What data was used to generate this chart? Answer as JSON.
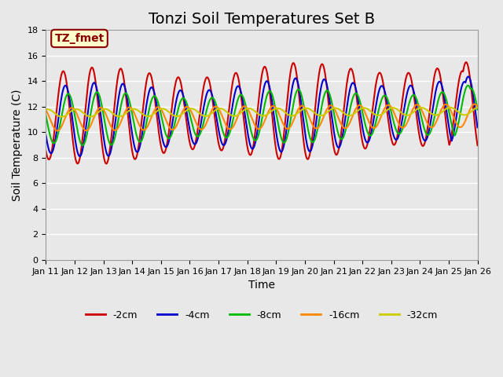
{
  "title": "Tonzi Soil Temperatures Set B",
  "xlabel": "Time",
  "ylabel": "Soil Temperature (C)",
  "ylim": [
    0,
    18
  ],
  "xlim": [
    0,
    15
  ],
  "yticks": [
    0,
    2,
    4,
    6,
    8,
    10,
    12,
    14,
    16,
    18
  ],
  "xtick_labels": [
    "Jan 11",
    "Jan 12",
    "Jan 13",
    "Jan 14",
    "Jan 15",
    "Jan 16",
    "Jan 17",
    "Jan 18",
    "Jan 19",
    "Jan 20",
    "Jan 21",
    "Jan 22",
    "Jan 23",
    "Jan 24",
    "Jan 25",
    "Jan 26"
  ],
  "annotation_text": "TZ_fmet",
  "annotation_color": "#8B0000",
  "annotation_bg": "#FFFFCC",
  "legend_colors": {
    "-2cm": "#CC0000",
    "-4cm": "#0000CC",
    "-8cm": "#00BB00",
    "-16cm": "#FF8800",
    "-32cm": "#CCCC00"
  },
  "linewidth": 1.5,
  "background_color": "#E8E8E8",
  "grid_color": "#FFFFFF",
  "title_fontsize": 14,
  "label_fontsize": 10,
  "tick_fontsize": 8
}
